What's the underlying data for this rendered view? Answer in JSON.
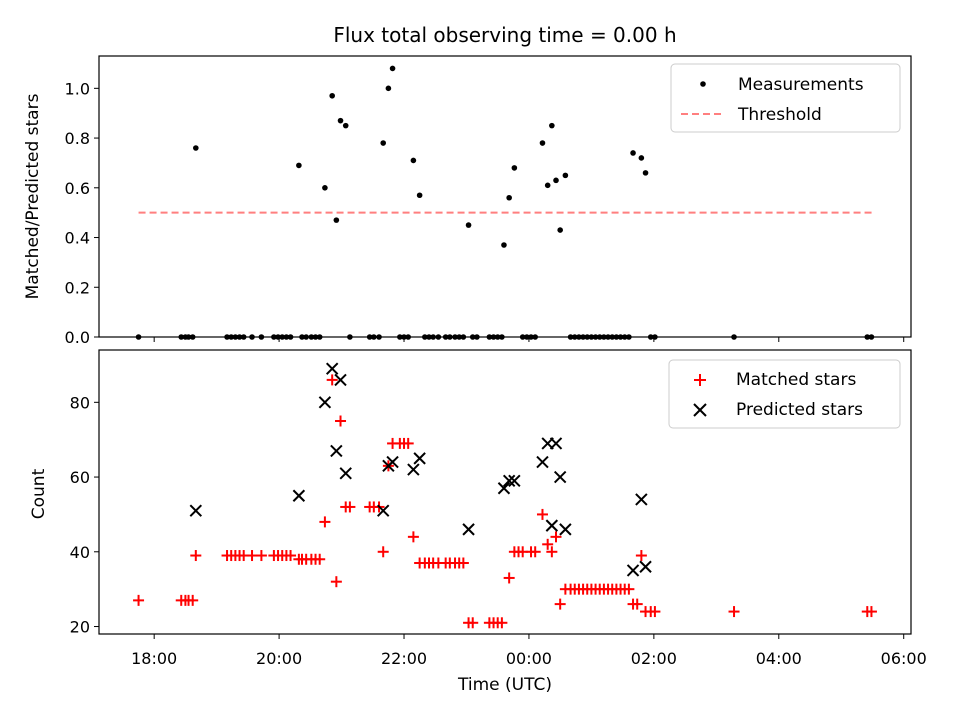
{
  "colors": {
    "measurement": "#000000",
    "threshold": "#ff7f7f",
    "matched": "#ff0000",
    "predicted": "#000000",
    "axes": "#000000",
    "legend_border": "#cccccc"
  },
  "chart_data": [
    {
      "type": "scatter",
      "title": "Flux total observing time = 0.00 h",
      "xlabel": "",
      "ylabel": "Matched/Predicted stars",
      "x_type": "time",
      "xlim": [
        "17:07",
        "06:07"
      ],
      "ylim": [
        0,
        1.13
      ],
      "yticks": [
        0.0,
        0.2,
        0.4,
        0.6,
        0.8,
        1.0
      ],
      "ytick_labels": [
        "0.0",
        "0.2",
        "0.4",
        "0.6",
        "0.8",
        "1.0"
      ],
      "legend_position": "top-right",
      "series": [
        {
          "name": "Measurements",
          "marker": "dot",
          "points": [
            {
              "x": "17:45",
              "y": 0
            },
            {
              "x": "18:26",
              "y": 0
            },
            {
              "x": "18:30",
              "y": 0
            },
            {
              "x": "18:33",
              "y": 0
            },
            {
              "x": "18:37",
              "y": 0
            },
            {
              "x": "18:40",
              "y": 0.76
            },
            {
              "x": "19:10",
              "y": 0
            },
            {
              "x": "19:14",
              "y": 0
            },
            {
              "x": "19:18",
              "y": 0
            },
            {
              "x": "19:22",
              "y": 0
            },
            {
              "x": "19:26",
              "y": 0
            },
            {
              "x": "19:34",
              "y": 0
            },
            {
              "x": "19:43",
              "y": 0
            },
            {
              "x": "19:55",
              "y": 0
            },
            {
              "x": "19:59",
              "y": 0
            },
            {
              "x": "20:03",
              "y": 0
            },
            {
              "x": "20:07",
              "y": 0
            },
            {
              "x": "20:11",
              "y": 0
            },
            {
              "x": "20:19",
              "y": 0.69
            },
            {
              "x": "20:22",
              "y": 0
            },
            {
              "x": "20:26",
              "y": 0
            },
            {
              "x": "20:31",
              "y": 0
            },
            {
              "x": "20:35",
              "y": 0
            },
            {
              "x": "20:39",
              "y": 0
            },
            {
              "x": "20:44",
              "y": 0.6
            },
            {
              "x": "20:51",
              "y": 0.97
            },
            {
              "x": "20:55",
              "y": 0.47
            },
            {
              "x": "20:59",
              "y": 0.87
            },
            {
              "x": "21:04",
              "y": 0.85
            },
            {
              "x": "21:08",
              "y": 0
            },
            {
              "x": "21:27",
              "y": 0
            },
            {
              "x": "21:31",
              "y": 0
            },
            {
              "x": "21:36",
              "y": 0
            },
            {
              "x": "21:40",
              "y": 0.78
            },
            {
              "x": "21:45",
              "y": 1.0
            },
            {
              "x": "21:49",
              "y": 1.08
            },
            {
              "x": "21:56",
              "y": 0
            },
            {
              "x": "22:00",
              "y": 0
            },
            {
              "x": "22:04",
              "y": 0
            },
            {
              "x": "22:09",
              "y": 0.71
            },
            {
              "x": "22:15",
              "y": 0.57
            },
            {
              "x": "22:20",
              "y": 0
            },
            {
              "x": "22:24",
              "y": 0
            },
            {
              "x": "22:28",
              "y": 0
            },
            {
              "x": "22:33",
              "y": 0
            },
            {
              "x": "22:40",
              "y": 0
            },
            {
              "x": "22:44",
              "y": 0
            },
            {
              "x": "22:49",
              "y": 0
            },
            {
              "x": "22:53",
              "y": 0
            },
            {
              "x": "22:57",
              "y": 0
            },
            {
              "x": "23:02",
              "y": 0.45
            },
            {
              "x": "23:06",
              "y": 0
            },
            {
              "x": "23:10",
              "y": 0
            },
            {
              "x": "23:22",
              "y": 0
            },
            {
              "x": "23:26",
              "y": 0
            },
            {
              "x": "23:30",
              "y": 0
            },
            {
              "x": "23:34",
              "y": 0
            },
            {
              "x": "23:36",
              "y": 0.37
            },
            {
              "x": "23:41",
              "y": 0.56
            },
            {
              "x": "23:46",
              "y": 0.68
            },
            {
              "x": "23:54",
              "y": 0
            },
            {
              "x": "23:58",
              "y": 0
            },
            {
              "x": "00:02",
              "y": 0
            },
            {
              "x": "00:06",
              "y": 0
            },
            {
              "x": "00:13",
              "y": 0.78
            },
            {
              "x": "00:18",
              "y": 0.61
            },
            {
              "x": "00:22",
              "y": 0.85
            },
            {
              "x": "00:26",
              "y": 0.63
            },
            {
              "x": "00:30",
              "y": 0.43
            },
            {
              "x": "00:35",
              "y": 0.65
            },
            {
              "x": "00:40",
              "y": 0
            },
            {
              "x": "00:44",
              "y": 0
            },
            {
              "x": "00:48",
              "y": 0
            },
            {
              "x": "00:52",
              "y": 0
            },
            {
              "x": "00:56",
              "y": 0
            },
            {
              "x": "01:00",
              "y": 0
            },
            {
              "x": "01:04",
              "y": 0
            },
            {
              "x": "01:08",
              "y": 0
            },
            {
              "x": "01:12",
              "y": 0
            },
            {
              "x": "01:16",
              "y": 0
            },
            {
              "x": "01:20",
              "y": 0
            },
            {
              "x": "01:24",
              "y": 0
            },
            {
              "x": "01:28",
              "y": 0
            },
            {
              "x": "01:32",
              "y": 0
            },
            {
              "x": "01:36",
              "y": 0
            },
            {
              "x": "01:40",
              "y": 0.74
            },
            {
              "x": "01:48",
              "y": 0.72
            },
            {
              "x": "01:52",
              "y": 0.66
            },
            {
              "x": "01:57",
              "y": 0
            },
            {
              "x": "02:01",
              "y": 0
            },
            {
              "x": "03:17",
              "y": 0
            },
            {
              "x": "05:25",
              "y": 0
            },
            {
              "x": "05:29",
              "y": 0
            }
          ]
        },
        {
          "name": "Threshold",
          "style": "dashed",
          "points": [
            {
              "x": "17:45",
              "y": 0.5
            },
            {
              "x": "05:30",
              "y": 0.5
            }
          ]
        }
      ]
    },
    {
      "type": "scatter",
      "title": "",
      "xlabel": "Time (UTC)",
      "ylabel": "Count",
      "x_type": "time",
      "xlim": [
        "17:07",
        "06:07"
      ],
      "ylim": [
        18,
        94
      ],
      "yticks": [
        20,
        40,
        60,
        80
      ],
      "ytick_labels": [
        "20",
        "40",
        "60",
        "80"
      ],
      "xticks": [
        "18:00",
        "20:00",
        "22:00",
        "00:00",
        "02:00",
        "04:00",
        "06:00"
      ],
      "xtick_labels": [
        "18:00",
        "20:00",
        "22:00",
        "00:00",
        "02:00",
        "04:00",
        "06:00"
      ],
      "legend_position": "top-right",
      "series": [
        {
          "name": "Matched stars",
          "marker": "plus",
          "points": [
            {
              "x": "17:45",
              "y": 27
            },
            {
              "x": "18:26",
              "y": 27
            },
            {
              "x": "18:30",
              "y": 27
            },
            {
              "x": "18:33",
              "y": 27
            },
            {
              "x": "18:37",
              "y": 27
            },
            {
              "x": "18:40",
              "y": 39
            },
            {
              "x": "19:10",
              "y": 39
            },
            {
              "x": "19:14",
              "y": 39
            },
            {
              "x": "19:18",
              "y": 39
            },
            {
              "x": "19:22",
              "y": 39
            },
            {
              "x": "19:26",
              "y": 39
            },
            {
              "x": "19:34",
              "y": 39
            },
            {
              "x": "19:43",
              "y": 39
            },
            {
              "x": "19:55",
              "y": 39
            },
            {
              "x": "19:59",
              "y": 39
            },
            {
              "x": "20:03",
              "y": 39
            },
            {
              "x": "20:07",
              "y": 39
            },
            {
              "x": "20:11",
              "y": 39
            },
            {
              "x": "20:19",
              "y": 38
            },
            {
              "x": "20:22",
              "y": 38
            },
            {
              "x": "20:26",
              "y": 38
            },
            {
              "x": "20:31",
              "y": 38
            },
            {
              "x": "20:35",
              "y": 38
            },
            {
              "x": "20:39",
              "y": 38
            },
            {
              "x": "20:44",
              "y": 48
            },
            {
              "x": "20:51",
              "y": 86
            },
            {
              "x": "20:55",
              "y": 32
            },
            {
              "x": "20:59",
              "y": 75
            },
            {
              "x": "21:04",
              "y": 52
            },
            {
              "x": "21:08",
              "y": 52
            },
            {
              "x": "21:27",
              "y": 52
            },
            {
              "x": "21:31",
              "y": 52
            },
            {
              "x": "21:36",
              "y": 52
            },
            {
              "x": "21:40",
              "y": 40
            },
            {
              "x": "21:45",
              "y": 63
            },
            {
              "x": "21:49",
              "y": 69
            },
            {
              "x": "21:56",
              "y": 69
            },
            {
              "x": "22:00",
              "y": 69
            },
            {
              "x": "22:04",
              "y": 69
            },
            {
              "x": "22:09",
              "y": 44
            },
            {
              "x": "22:15",
              "y": 37
            },
            {
              "x": "22:20",
              "y": 37
            },
            {
              "x": "22:24",
              "y": 37
            },
            {
              "x": "22:28",
              "y": 37
            },
            {
              "x": "22:33",
              "y": 37
            },
            {
              "x": "22:40",
              "y": 37
            },
            {
              "x": "22:44",
              "y": 37
            },
            {
              "x": "22:49",
              "y": 37
            },
            {
              "x": "22:53",
              "y": 37
            },
            {
              "x": "22:57",
              "y": 37
            },
            {
              "x": "23:02",
              "y": 21
            },
            {
              "x": "23:06",
              "y": 21
            },
            {
              "x": "23:22",
              "y": 21
            },
            {
              "x": "23:26",
              "y": 21
            },
            {
              "x": "23:30",
              "y": 21
            },
            {
              "x": "23:34",
              "y": 21
            },
            {
              "x": "23:41",
              "y": 33
            },
            {
              "x": "23:46",
              "y": 40
            },
            {
              "x": "23:50",
              "y": 40
            },
            {
              "x": "23:54",
              "y": 40
            },
            {
              "x": "00:02",
              "y": 40
            },
            {
              "x": "00:06",
              "y": 40
            },
            {
              "x": "00:13",
              "y": 50
            },
            {
              "x": "00:18",
              "y": 42
            },
            {
              "x": "00:22",
              "y": 40
            },
            {
              "x": "00:26",
              "y": 44
            },
            {
              "x": "00:30",
              "y": 26
            },
            {
              "x": "00:35",
              "y": 30
            },
            {
              "x": "00:40",
              "y": 30
            },
            {
              "x": "00:44",
              "y": 30
            },
            {
              "x": "00:48",
              "y": 30
            },
            {
              "x": "00:52",
              "y": 30
            },
            {
              "x": "00:56",
              "y": 30
            },
            {
              "x": "01:00",
              "y": 30
            },
            {
              "x": "01:04",
              "y": 30
            },
            {
              "x": "01:08",
              "y": 30
            },
            {
              "x": "01:12",
              "y": 30
            },
            {
              "x": "01:16",
              "y": 30
            },
            {
              "x": "01:20",
              "y": 30
            },
            {
              "x": "01:24",
              "y": 30
            },
            {
              "x": "01:28",
              "y": 30
            },
            {
              "x": "01:32",
              "y": 30
            },
            {
              "x": "01:36",
              "y": 30
            },
            {
              "x": "01:40",
              "y": 26
            },
            {
              "x": "01:44",
              "y": 26
            },
            {
              "x": "01:48",
              "y": 39
            },
            {
              "x": "01:52",
              "y": 24
            },
            {
              "x": "01:57",
              "y": 24
            },
            {
              "x": "02:01",
              "y": 24
            },
            {
              "x": "03:17",
              "y": 24
            },
            {
              "x": "05:25",
              "y": 24
            },
            {
              "x": "05:29",
              "y": 24
            }
          ]
        },
        {
          "name": "Predicted stars",
          "marker": "x",
          "points": [
            {
              "x": "18:40",
              "y": 51
            },
            {
              "x": "20:19",
              "y": 55
            },
            {
              "x": "20:44",
              "y": 80
            },
            {
              "x": "20:51",
              "y": 89
            },
            {
              "x": "20:55",
              "y": 67
            },
            {
              "x": "20:59",
              "y": 86
            },
            {
              "x": "21:04",
              "y": 61
            },
            {
              "x": "21:40",
              "y": 51
            },
            {
              "x": "21:45",
              "y": 63
            },
            {
              "x": "21:49",
              "y": 64
            },
            {
              "x": "22:09",
              "y": 62
            },
            {
              "x": "22:15",
              "y": 65
            },
            {
              "x": "23:02",
              "y": 46
            },
            {
              "x": "23:36",
              "y": 57
            },
            {
              "x": "23:41",
              "y": 59
            },
            {
              "x": "23:46",
              "y": 59
            },
            {
              "x": "00:13",
              "y": 64
            },
            {
              "x": "00:18",
              "y": 69
            },
            {
              "x": "00:22",
              "y": 47
            },
            {
              "x": "00:26",
              "y": 69
            },
            {
              "x": "00:30",
              "y": 60
            },
            {
              "x": "00:35",
              "y": 46
            },
            {
              "x": "01:40",
              "y": 35
            },
            {
              "x": "01:48",
              "y": 54
            },
            {
              "x": "01:52",
              "y": 36
            }
          ]
        }
      ]
    }
  ]
}
